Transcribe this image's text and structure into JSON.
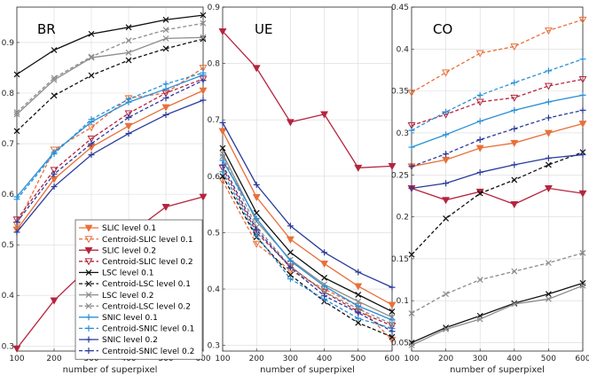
{
  "chart_data": [
    {
      "type": "line",
      "title": "BR",
      "xlabel": "number of superpixel",
      "ylabel": "",
      "x": [
        100,
        200,
        300,
        400,
        500,
        600
      ],
      "xlim": [
        100,
        600
      ],
      "ylim": [
        0.29,
        0.97
      ],
      "xticks": [
        "100",
        "200",
        "300",
        "400",
        "500",
        "600"
      ],
      "yticks": [
        0.3,
        0.4,
        0.5,
        0.6,
        0.7,
        0.8,
        0.9
      ],
      "ytick_labels": [
        "0.3",
        "0.4",
        "0.5",
        "0.6",
        "0.7",
        "0.8",
        "0.9"
      ],
      "grid": true,
      "series": [
        {
          "name": "SLIC level 0.1",
          "values": [
            0.53,
            0.63,
            0.693,
            0.735,
            0.772,
            0.805
          ]
        },
        {
          "name": "Centroid-SLIC level 0.1",
          "values": [
            0.54,
            0.688,
            0.732,
            0.79,
            0.8,
            0.85
          ]
        },
        {
          "name": "SLIC level 0.2",
          "values": [
            0.295,
            0.39,
            0.46,
            0.52,
            0.575,
            0.595
          ]
        },
        {
          "name": "Centroid-SLIC level 0.2",
          "values": [
            0.55,
            0.648,
            0.71,
            0.76,
            0.8,
            0.828
          ]
        },
        {
          "name": "LSC level 0.1",
          "values": [
            0.837,
            0.885,
            0.917,
            0.93,
            0.945,
            0.954
          ]
        },
        {
          "name": "Centroid-LSC level 0.1",
          "values": [
            0.725,
            0.795,
            0.835,
            0.865,
            0.888,
            0.907
          ]
        },
        {
          "name": "LSC level 0.2",
          "values": [
            0.758,
            0.826,
            0.87,
            0.88,
            0.908,
            0.91
          ]
        },
        {
          "name": "Centroid-LSC level 0.2",
          "values": [
            0.762,
            0.83,
            0.872,
            0.904,
            0.925,
            0.938
          ]
        },
        {
          "name": "SNIC level 0.1",
          "values": [
            0.595,
            0.683,
            0.743,
            0.782,
            0.808,
            0.836
          ]
        },
        {
          "name": "Centroid-SNIC level 0.1",
          "values": [
            0.59,
            0.68,
            0.748,
            0.788,
            0.818,
            0.84
          ]
        },
        {
          "name": "SNIC level 0.2",
          "values": [
            0.525,
            0.615,
            0.678,
            0.72,
            0.757,
            0.786
          ]
        },
        {
          "name": "Centroid-SNIC level 0.2",
          "values": [
            0.545,
            0.64,
            0.7,
            0.752,
            0.79,
            0.825
          ]
        }
      ]
    },
    {
      "type": "line",
      "title": "UE",
      "xlabel": "number of superpixel",
      "ylabel": "",
      "x": [
        100,
        200,
        300,
        400,
        500,
        600
      ],
      "xlim": [
        100,
        600
      ],
      "ylim": [
        0.29,
        0.9
      ],
      "xticks": [
        "100",
        "200",
        "300",
        "400",
        "500",
        "600"
      ],
      "yticks": [
        0.3,
        0.4,
        0.5,
        0.6,
        0.7,
        0.8,
        0.9
      ],
      "ytick_labels": [
        "0.3",
        "0.4",
        "0.5",
        "0.6",
        "0.7",
        "0.8",
        "0.9"
      ],
      "grid": true,
      "series": [
        {
          "name": "SLIC level 0.1",
          "values": [
            0.68,
            0.563,
            0.488,
            0.445,
            0.405,
            0.372
          ]
        },
        {
          "name": "Centroid-SLIC level 0.1",
          "values": [
            0.592,
            0.48,
            0.433,
            0.4,
            0.37,
            0.31
          ]
        },
        {
          "name": "SLIC level 0.2",
          "values": [
            0.857,
            0.792,
            0.696,
            0.71,
            0.615,
            0.618
          ]
        },
        {
          "name": "Centroid-SLIC level 0.2",
          "values": [
            0.615,
            0.5,
            0.44,
            0.395,
            0.36,
            0.335
          ]
        },
        {
          "name": "LSC level 0.1",
          "values": [
            0.65,
            0.535,
            0.465,
            0.42,
            0.39,
            0.36
          ]
        },
        {
          "name": "Centroid-LSC level 0.1",
          "values": [
            0.6,
            0.492,
            0.425,
            0.378,
            0.34,
            0.315
          ]
        },
        {
          "name": "LSC level 0.2",
          "values": [
            0.64,
            0.52,
            0.452,
            0.408,
            0.378,
            0.35
          ]
        },
        {
          "name": "Centroid-LSC level 0.2",
          "values": [
            0.635,
            0.51,
            0.44,
            0.395,
            0.365,
            0.338
          ]
        },
        {
          "name": "SNIC level 0.1",
          "values": [
            0.628,
            0.525,
            0.45,
            0.405,
            0.37,
            0.345
          ]
        },
        {
          "name": "Centroid-SNIC level 0.1",
          "values": [
            0.608,
            0.495,
            0.418,
            0.382,
            0.348,
            0.33
          ]
        },
        {
          "name": "SNIC level 0.2",
          "values": [
            0.695,
            0.585,
            0.512,
            0.465,
            0.43,
            0.403
          ]
        },
        {
          "name": "Centroid-SNIC level 0.2",
          "values": [
            0.62,
            0.505,
            0.438,
            0.388,
            0.358,
            0.325
          ]
        }
      ]
    },
    {
      "type": "line",
      "title": "CO",
      "xlabel": "number of superpixel",
      "ylabel": "",
      "x": [
        100,
        200,
        300,
        400,
        500,
        600
      ],
      "xlim": [
        100,
        600
      ],
      "ylim": [
        0.04,
        0.45
      ],
      "xticks": [
        "100",
        "200",
        "300",
        "400",
        "500",
        "600"
      ],
      "yticks": [
        0.05,
        0.1,
        0.15,
        0.2,
        0.25,
        0.3,
        0.35,
        0.4,
        0.45
      ],
      "ytick_labels": [
        "0.05",
        "0.1",
        "0.15",
        "0.2",
        "0.25",
        "0.3",
        "0.35",
        "0.4",
        "0.45"
      ],
      "grid": true,
      "series": [
        {
          "name": "SLIC level 0.1",
          "values": [
            0.26,
            0.268,
            0.282,
            0.288,
            0.3,
            0.311
          ]
        },
        {
          "name": "Centroid-SLIC level 0.1",
          "values": [
            0.348,
            0.372,
            0.395,
            0.403,
            0.422,
            0.435
          ]
        },
        {
          "name": "SLIC level 0.2",
          "values": [
            0.234,
            0.22,
            0.23,
            0.215,
            0.234,
            0.228
          ]
        },
        {
          "name": "Centroid-SLIC level 0.2",
          "values": [
            0.309,
            0.322,
            0.337,
            0.342,
            0.356,
            0.364
          ]
        },
        {
          "name": "LSC level 0.1",
          "values": [
            0.05,
            0.068,
            0.082,
            0.097,
            0.108,
            0.121
          ]
        },
        {
          "name": "Centroid-LSC level 0.1",
          "values": [
            0.155,
            0.198,
            0.228,
            0.244,
            0.262,
            0.277
          ]
        },
        {
          "name": "LSC level 0.2",
          "values": [
            0.047,
            0.066,
            0.078,
            0.096,
            0.102,
            0.118
          ]
        },
        {
          "name": "Centroid-LSC level 0.2",
          "values": [
            0.085,
            0.108,
            0.125,
            0.135,
            0.145,
            0.157
          ]
        },
        {
          "name": "SNIC level 0.1",
          "values": [
            0.283,
            0.298,
            0.314,
            0.327,
            0.337,
            0.345
          ]
        },
        {
          "name": "Centroid-SNIC level 0.1",
          "values": [
            0.303,
            0.325,
            0.345,
            0.36,
            0.374,
            0.388
          ]
        },
        {
          "name": "SNIC level 0.2",
          "values": [
            0.234,
            0.24,
            0.253,
            0.262,
            0.27,
            0.274
          ]
        },
        {
          "name": "Centroid-SNIC level 0.2",
          "values": [
            0.26,
            0.275,
            0.292,
            0.305,
            0.318,
            0.327
          ]
        }
      ]
    }
  ],
  "legend": {
    "entries": [
      "SLIC level 0.1",
      "Centroid-SLIC level 0.1",
      "SLIC level 0.2",
      "Centroid-SLIC level 0.2",
      "LSC level 0.1",
      "Centroid-LSC level 0.1",
      "LSC level 0.2",
      "Centroid-LSC level 0.2",
      "SNIC level 0.1",
      "Centroid-SNIC level 0.1",
      "SNIC level 0.2",
      "Centroid-SNIC level 0.2"
    ],
    "placement": "bottom-right of BR panel"
  },
  "series_styles": [
    {
      "color": "#e8703a",
      "dash": "solid",
      "marker": "triangle-down"
    },
    {
      "color": "#e8703a",
      "dash": "dashed",
      "marker": "triangle-down-open"
    },
    {
      "color": "#b5243e",
      "dash": "solid",
      "marker": "triangle-down"
    },
    {
      "color": "#b5243e",
      "dash": "dashed",
      "marker": "triangle-down-open"
    },
    {
      "color": "#111111",
      "dash": "solid",
      "marker": "x"
    },
    {
      "color": "#111111",
      "dash": "dashed",
      "marker": "x"
    },
    {
      "color": "#8c8c8c",
      "dash": "solid",
      "marker": "x"
    },
    {
      "color": "#8c8c8c",
      "dash": "dashed",
      "marker": "x"
    },
    {
      "color": "#2a8fd6",
      "dash": "solid",
      "marker": "plus"
    },
    {
      "color": "#2a8fd6",
      "dash": "dashed",
      "marker": "plus"
    },
    {
      "color": "#2b3b9a",
      "dash": "solid",
      "marker": "plus"
    },
    {
      "color": "#2b3b9a",
      "dash": "dashed",
      "marker": "plus"
    }
  ]
}
